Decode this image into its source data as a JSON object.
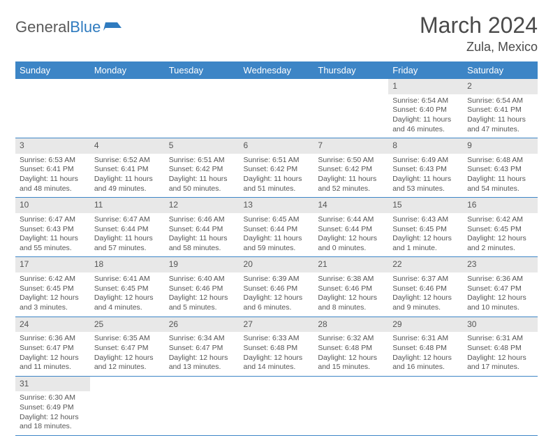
{
  "logo": {
    "text1": "General",
    "text2": "Blue"
  },
  "title": "March 2024",
  "location": "Zula, Mexico",
  "colors": {
    "header_bg": "#3d85c6",
    "header_text": "#ffffff",
    "daynum_bg": "#e8e8e8",
    "border": "#3d85c6",
    "text": "#555555",
    "logo_gray": "#5a5a5a",
    "logo_blue": "#2f7bbf"
  },
  "weekdays": [
    "Sunday",
    "Monday",
    "Tuesday",
    "Wednesday",
    "Thursday",
    "Friday",
    "Saturday"
  ],
  "weeks": [
    {
      "nums": [
        "",
        "",
        "",
        "",
        "",
        "1",
        "2"
      ],
      "cells": [
        null,
        null,
        null,
        null,
        null,
        {
          "sr": "6:54 AM",
          "ss": "6:40 PM",
          "dl": "11 hours and 46 minutes."
        },
        {
          "sr": "6:54 AM",
          "ss": "6:41 PM",
          "dl": "11 hours and 47 minutes."
        }
      ]
    },
    {
      "nums": [
        "3",
        "4",
        "5",
        "6",
        "7",
        "8",
        "9"
      ],
      "cells": [
        {
          "sr": "6:53 AM",
          "ss": "6:41 PM",
          "dl": "11 hours and 48 minutes."
        },
        {
          "sr": "6:52 AM",
          "ss": "6:41 PM",
          "dl": "11 hours and 49 minutes."
        },
        {
          "sr": "6:51 AM",
          "ss": "6:42 PM",
          "dl": "11 hours and 50 minutes."
        },
        {
          "sr": "6:51 AM",
          "ss": "6:42 PM",
          "dl": "11 hours and 51 minutes."
        },
        {
          "sr": "6:50 AM",
          "ss": "6:42 PM",
          "dl": "11 hours and 52 minutes."
        },
        {
          "sr": "6:49 AM",
          "ss": "6:43 PM",
          "dl": "11 hours and 53 minutes."
        },
        {
          "sr": "6:48 AM",
          "ss": "6:43 PM",
          "dl": "11 hours and 54 minutes."
        }
      ]
    },
    {
      "nums": [
        "10",
        "11",
        "12",
        "13",
        "14",
        "15",
        "16"
      ],
      "cells": [
        {
          "sr": "6:47 AM",
          "ss": "6:43 PM",
          "dl": "11 hours and 55 minutes."
        },
        {
          "sr": "6:47 AM",
          "ss": "6:44 PM",
          "dl": "11 hours and 57 minutes."
        },
        {
          "sr": "6:46 AM",
          "ss": "6:44 PM",
          "dl": "11 hours and 58 minutes."
        },
        {
          "sr": "6:45 AM",
          "ss": "6:44 PM",
          "dl": "11 hours and 59 minutes."
        },
        {
          "sr": "6:44 AM",
          "ss": "6:44 PM",
          "dl": "12 hours and 0 minutes."
        },
        {
          "sr": "6:43 AM",
          "ss": "6:45 PM",
          "dl": "12 hours and 1 minute."
        },
        {
          "sr": "6:42 AM",
          "ss": "6:45 PM",
          "dl": "12 hours and 2 minutes."
        }
      ]
    },
    {
      "nums": [
        "17",
        "18",
        "19",
        "20",
        "21",
        "22",
        "23"
      ],
      "cells": [
        {
          "sr": "6:42 AM",
          "ss": "6:45 PM",
          "dl": "12 hours and 3 minutes."
        },
        {
          "sr": "6:41 AM",
          "ss": "6:45 PM",
          "dl": "12 hours and 4 minutes."
        },
        {
          "sr": "6:40 AM",
          "ss": "6:46 PM",
          "dl": "12 hours and 5 minutes."
        },
        {
          "sr": "6:39 AM",
          "ss": "6:46 PM",
          "dl": "12 hours and 6 minutes."
        },
        {
          "sr": "6:38 AM",
          "ss": "6:46 PM",
          "dl": "12 hours and 8 minutes."
        },
        {
          "sr": "6:37 AM",
          "ss": "6:46 PM",
          "dl": "12 hours and 9 minutes."
        },
        {
          "sr": "6:36 AM",
          "ss": "6:47 PM",
          "dl": "12 hours and 10 minutes."
        }
      ]
    },
    {
      "nums": [
        "24",
        "25",
        "26",
        "27",
        "28",
        "29",
        "30"
      ],
      "cells": [
        {
          "sr": "6:36 AM",
          "ss": "6:47 PM",
          "dl": "12 hours and 11 minutes."
        },
        {
          "sr": "6:35 AM",
          "ss": "6:47 PM",
          "dl": "12 hours and 12 minutes."
        },
        {
          "sr": "6:34 AM",
          "ss": "6:47 PM",
          "dl": "12 hours and 13 minutes."
        },
        {
          "sr": "6:33 AM",
          "ss": "6:48 PM",
          "dl": "12 hours and 14 minutes."
        },
        {
          "sr": "6:32 AM",
          "ss": "6:48 PM",
          "dl": "12 hours and 15 minutes."
        },
        {
          "sr": "6:31 AM",
          "ss": "6:48 PM",
          "dl": "12 hours and 16 minutes."
        },
        {
          "sr": "6:31 AM",
          "ss": "6:48 PM",
          "dl": "12 hours and 17 minutes."
        }
      ]
    },
    {
      "nums": [
        "31",
        "",
        "",
        "",
        "",
        "",
        ""
      ],
      "cells": [
        {
          "sr": "6:30 AM",
          "ss": "6:49 PM",
          "dl": "12 hours and 18 minutes."
        },
        null,
        null,
        null,
        null,
        null,
        null
      ]
    }
  ],
  "labels": {
    "sunrise": "Sunrise:",
    "sunset": "Sunset:",
    "daylight": "Daylight:"
  }
}
